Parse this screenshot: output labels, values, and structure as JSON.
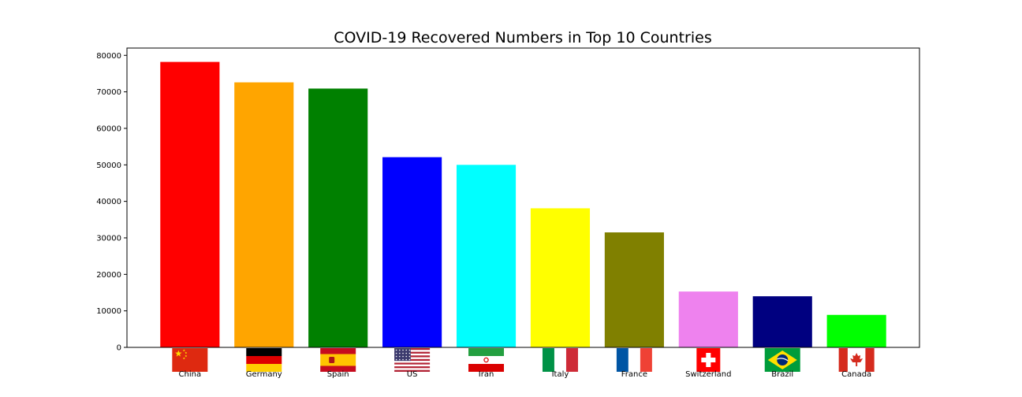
{
  "chart_data": {
    "type": "bar",
    "title": "COVID-19 Recovered Numbers in Top 10 Countries",
    "xlabel": "",
    "ylabel": "",
    "categories": [
      "China",
      "Germany",
      "Spain",
      "US",
      "Iran",
      "Italy",
      "France",
      "Switzerland",
      "Brazil",
      "Canada"
    ],
    "values": [
      78200,
      72600,
      70900,
      52100,
      50000,
      38100,
      31500,
      15300,
      14000,
      8900
    ],
    "bar_colors": [
      "#ff0000",
      "#ffa500",
      "#008000",
      "#0000ff",
      "#00ffff",
      "#ffff00",
      "#808000",
      "#ee82ee",
      "#000080",
      "#00ff00"
    ],
    "flag_icons": [
      "china-flag-icon",
      "germany-flag-icon",
      "spain-flag-icon",
      "us-flag-icon",
      "iran-flag-icon",
      "italy-flag-icon",
      "france-flag-icon",
      "switzerland-flag-icon",
      "brazil-flag-icon",
      "canada-flag-icon"
    ],
    "ylim": [
      0,
      82000
    ],
    "yticks": [
      "0",
      "10000",
      "20000",
      "30000",
      "40000",
      "50000",
      "60000",
      "70000",
      "80000"
    ],
    "grid": false,
    "legend": "none"
  }
}
